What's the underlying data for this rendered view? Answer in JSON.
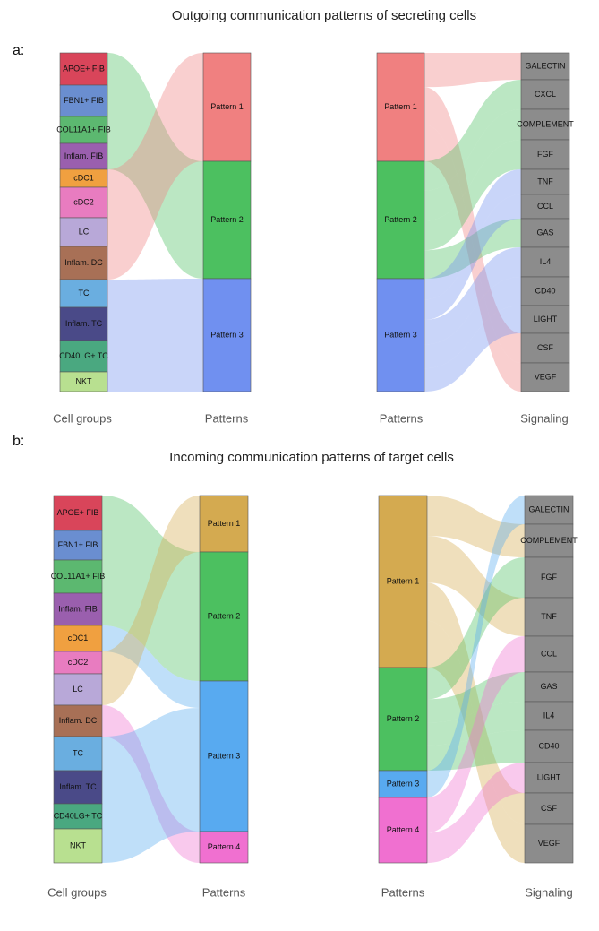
{
  "panels": [
    {
      "tag": "a:",
      "title": "Outgoing communication patterns of secreting cells",
      "cell_groups": [
        "APOE+ FIB",
        "FBN1+ FIB",
        "COL11A1+ FIB",
        "Inflam. FIB",
        "cDC1",
        "cDC2",
        "LC",
        "Inflam. DC",
        "TC",
        "Inflam. TC",
        "CD40LG+ TC",
        "NKT"
      ],
      "patterns_left": [
        "Pattern 1",
        "Pattern 2",
        "Pattern 3"
      ],
      "patterns_right": [
        "Pattern 1",
        "Pattern 2",
        "Pattern 3"
      ],
      "signaling": [
        "GALECTIN",
        "CXCL",
        "COMPLEMENT",
        "FGF",
        "TNF",
        "CCL",
        "GAS",
        "IL4",
        "CD40",
        "LIGHT",
        "CSF",
        "VEGF"
      ],
      "axis_labels": [
        "Cell groups",
        "Patterns",
        "Patterns",
        "Signaling"
      ]
    },
    {
      "tag": "b:",
      "title": "Incoming communication patterns of target cells",
      "cell_groups": [
        "APOE+ FIB",
        "FBN1+ FIB",
        "COL11A1+ FIB",
        "Inflam. FIB",
        "cDC1",
        "cDC2",
        "LC",
        "Inflam. DC",
        "TC",
        "Inflam. TC",
        "CD40LG+ TC",
        "NKT"
      ],
      "patterns_left": [
        "Pattern 1",
        "Pattern 2",
        "Pattern 3",
        "Pattern 4"
      ],
      "patterns_right": [
        "Pattern 1",
        "Pattern 2",
        "Pattern 3",
        "Pattern 4"
      ],
      "signaling": [
        "GALECTIN",
        "COMPLEMENT",
        "FGF",
        "TNF",
        "CCL",
        "GAS",
        "IL4",
        "CD40",
        "LIGHT",
        "CSF",
        "VEGF"
      ],
      "axis_labels": [
        "Cell groups",
        "Patterns",
        "Patterns",
        "Signaling"
      ]
    }
  ]
}
